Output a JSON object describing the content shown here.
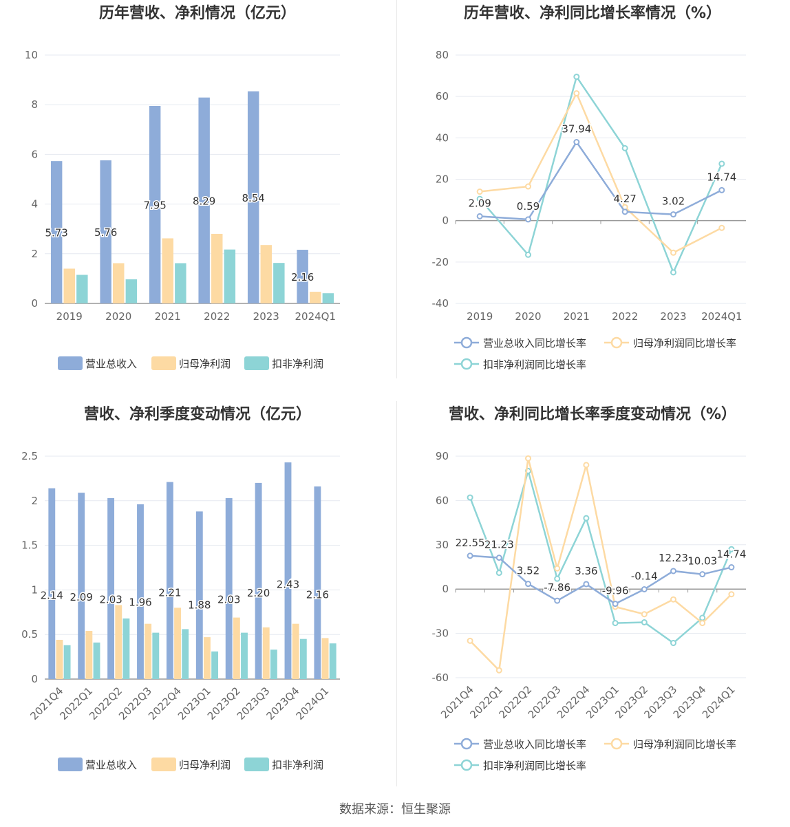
{
  "colors": {
    "revenue": "#8eacd9",
    "netprofit": "#fddaa3",
    "deducted": "#8dd4d6",
    "axis": "#666666",
    "grid": "#e6e9f0",
    "zero_line": "#999999"
  },
  "source": "数据来源：恒生聚源",
  "charts": [
    {
      "title": "历年营收、净利情况（亿元）",
      "type": "bar",
      "categories": [
        "2019",
        "2020",
        "2021",
        "2022",
        "2023",
        "2024Q1"
      ],
      "y_ticks": [
        "0",
        "2",
        "4",
        "6",
        "8",
        "10"
      ],
      "ylim": [
        0,
        10
      ],
      "series": [
        {
          "name": "营业总收入",
          "values": [
            5.73,
            5.76,
            7.95,
            8.29,
            8.54,
            2.16
          ],
          "labels": [
            "5.73",
            "5.76",
            "7.95",
            "8.29",
            "8.54",
            "2.16"
          ]
        },
        {
          "name": "归母净利润",
          "values": [
            1.4,
            1.62,
            2.62,
            2.8,
            2.35,
            0.47
          ]
        },
        {
          "name": "扣非净利润",
          "values": [
            1.15,
            0.97,
            1.62,
            2.17,
            1.63,
            0.41
          ]
        }
      ],
      "legend": "bottom"
    },
    {
      "title": "历年营收、净利同比增长率情况（%）",
      "type": "line",
      "categories": [
        "2019",
        "2020",
        "2021",
        "2022",
        "2023",
        "2024Q1"
      ],
      "y_ticks": [
        "-40",
        "-20",
        "0",
        "20",
        "40",
        "60",
        "80"
      ],
      "ylim": [
        -40,
        80
      ],
      "series": [
        {
          "name": "营业总收入同比增长率",
          "values": [
            2.09,
            0.59,
            37.94,
            4.27,
            3.02,
            14.74
          ],
          "labels": [
            "2.09",
            "0.59",
            "37.94",
            "4.27",
            "3.02",
            "14.74"
          ]
        },
        {
          "name": "归母净利润同比增长率",
          "values": [
            14.0,
            16.5,
            61.5,
            6.5,
            -15.5,
            -3.5
          ]
        },
        {
          "name": "扣非净利润同比增长率",
          "values": [
            10.5,
            -16.5,
            69.5,
            35.0,
            -25.0,
            27.5
          ]
        }
      ],
      "legend": "bottom"
    },
    {
      "title": "营收、净利季度变动情况（亿元）",
      "type": "bar",
      "categories": [
        "2021Q4",
        "2022Q1",
        "2022Q2",
        "2022Q3",
        "2022Q4",
        "2023Q1",
        "2023Q2",
        "2023Q3",
        "2023Q4",
        "2024Q1"
      ],
      "y_ticks": [
        "0",
        "0.5",
        "1",
        "1.5",
        "2",
        "2.5"
      ],
      "ylim": [
        0,
        2.5
      ],
      "series": [
        {
          "name": "营业总收入",
          "values": [
            2.14,
            2.09,
            2.03,
            1.96,
            2.21,
            1.88,
            2.03,
            2.2,
            2.43,
            2.16
          ],
          "labels": [
            "2.14",
            "2.09",
            "2.03",
            "1.96",
            "2.21",
            "1.88",
            "2.03",
            "2.20",
            "2.43",
            "2.16"
          ]
        },
        {
          "name": "归母净利润",
          "values": [
            0.44,
            0.54,
            0.83,
            0.62,
            0.8,
            0.47,
            0.69,
            0.58,
            0.62,
            0.46
          ]
        },
        {
          "name": "扣非净利润",
          "values": [
            0.38,
            0.41,
            0.68,
            0.52,
            0.56,
            0.31,
            0.52,
            0.33,
            0.45,
            0.4
          ]
        }
      ],
      "legend": "bottom"
    },
    {
      "title": "营收、净利同比增长率季度变动情况（%）",
      "type": "line",
      "categories": [
        "2021Q4",
        "2022Q1",
        "2022Q2",
        "2022Q3",
        "2022Q4",
        "2023Q1",
        "2023Q2",
        "2023Q3",
        "2023Q4",
        "2024Q1"
      ],
      "y_ticks": [
        "-60",
        "-30",
        "0",
        "30",
        "60",
        "90"
      ],
      "ylim": [
        -60,
        90
      ],
      "series": [
        {
          "name": "营业总收入同比增长率",
          "values": [
            22.55,
            21.23,
            3.52,
            -7.86,
            3.36,
            -9.96,
            -0.14,
            12.23,
            10.03,
            14.74
          ],
          "labels": [
            "22.55",
            "21.23",
            "3.52",
            "-7.86",
            "3.36",
            "-9.96",
            "-0.14",
            "12.23",
            "10.03",
            "14.74"
          ]
        },
        {
          "name": "归母净利润同比增长率",
          "values": [
            -35,
            -55,
            88.5,
            14,
            84,
            -12,
            -17,
            -7,
            -23,
            -3.5
          ]
        },
        {
          "name": "扣非净利润同比增长率",
          "values": [
            62,
            11,
            80,
            7,
            48,
            -23,
            -22.5,
            -36.5,
            -19.5,
            27
          ]
        }
      ],
      "legend": "bottom"
    }
  ]
}
